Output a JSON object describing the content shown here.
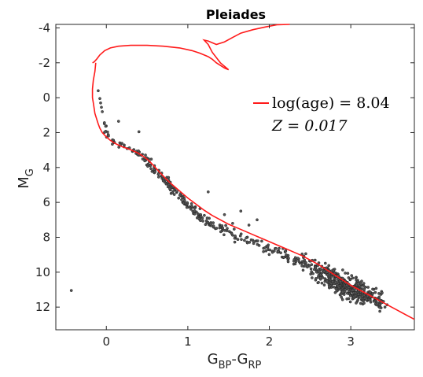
{
  "chart_data": {
    "type": "scatter",
    "title": "Pleiades",
    "xlabel": {
      "main": "G",
      "sub1": "BP",
      "dash": "-",
      "main2": "G",
      "sub2": "RP"
    },
    "ylabel": {
      "main": "M",
      "sub": "G"
    },
    "xlim": [
      -0.62,
      3.78
    ],
    "ylim": [
      13.3,
      -4.2
    ],
    "y_reversed": true,
    "xticks": [
      0,
      1,
      2,
      3
    ],
    "xtick_labels": [
      "0",
      "1",
      "2",
      "3"
    ],
    "yticks": [
      -4,
      -2,
      0,
      2,
      4,
      6,
      8,
      10,
      12
    ],
    "ytick_labels": [
      "-4",
      "-2",
      "0",
      "2",
      "4",
      "6",
      "8",
      "10",
      "12"
    ],
    "grid": false,
    "legend": {
      "position": "upper-right",
      "entries": [
        {
          "line1": "log(age) = 8.04",
          "line2": "Z = 0.017"
        }
      ]
    },
    "colors": {
      "isochrone": "#ff1a1a",
      "stars": "#555555",
      "stars_edge": "#222222"
    },
    "isochrone": {
      "name": "log(age) = 8.04, Z = 0.017",
      "x": [
        -0.13,
        -0.14,
        -0.16,
        -0.17,
        -0.17,
        -0.16,
        -0.15,
        -0.14,
        -0.12,
        -0.1,
        -0.08,
        -0.05,
        0.0,
        0.05,
        0.1,
        0.15,
        0.2,
        0.28,
        0.38,
        0.45,
        0.52,
        0.58,
        0.65,
        0.72,
        0.8,
        0.9,
        1.0,
        1.1,
        1.2,
        1.3,
        1.4,
        1.5,
        1.6,
        1.7,
        1.8,
        1.9,
        2.0,
        2.1,
        2.2,
        2.3,
        2.4,
        2.5,
        2.6,
        2.7,
        2.8,
        2.9,
        3.0,
        3.1,
        3.2,
        3.3,
        3.4,
        3.5,
        3.6,
        3.7,
        3.78
      ],
      "y": [
        -2.0,
        -1.5,
        -1.0,
        -0.5,
        0.0,
        0.3,
        0.6,
        0.9,
        1.2,
        1.5,
        1.75,
        2.0,
        2.25,
        2.45,
        2.6,
        2.72,
        2.82,
        2.95,
        3.15,
        3.35,
        3.6,
        3.9,
        4.25,
        4.6,
        4.95,
        5.35,
        5.75,
        6.1,
        6.45,
        6.75,
        7.0,
        7.25,
        7.45,
        7.65,
        7.85,
        8.05,
        8.25,
        8.45,
        8.65,
        8.85,
        9.05,
        9.3,
        9.55,
        9.85,
        10.15,
        10.45,
        10.75,
        11.0,
        11.25,
        11.5,
        11.75,
        12.0,
        12.25,
        12.5,
        12.7
      ]
    },
    "isochrone_top": {
      "x": [
        -0.17,
        -0.15,
        -0.12,
        -0.08,
        -0.02,
        0.05,
        0.15,
        0.3,
        0.5,
        0.7,
        0.9,
        1.05,
        1.15,
        1.25,
        1.3,
        1.35,
        1.4,
        1.45,
        1.5,
        1.4,
        1.3,
        1.25,
        1.2,
        1.25,
        1.35,
        1.45,
        1.55,
        1.65,
        1.8,
        1.95,
        2.1,
        2.25
      ],
      "y": [
        -2.0,
        -2.05,
        -2.2,
        -2.45,
        -2.7,
        -2.85,
        -2.95,
        -3.0,
        -3.0,
        -2.95,
        -2.85,
        -2.7,
        -2.55,
        -2.35,
        -2.2,
        -2.0,
        -1.85,
        -1.7,
        -1.6,
        -2.0,
        -2.6,
        -3.05,
        -3.3,
        -3.25,
        -3.05,
        -3.2,
        -3.45,
        -3.7,
        -3.9,
        -4.05,
        -4.18,
        -4.25
      ]
    },
    "outliers": {
      "x": [
        -0.43,
        -0.1,
        -0.08,
        -0.07,
        -0.06,
        -0.05,
        0.15,
        0.4,
        1.25,
        1.45,
        1.55,
        1.65,
        1.75,
        1.85,
        2.2,
        2.35
      ],
      "y": [
        11.05,
        -0.4,
        0.05,
        0.3,
        0.55,
        0.8,
        1.35,
        1.95,
        5.4,
        6.7,
        7.2,
        6.5,
        7.3,
        7.0,
        8.8,
        9.2
      ]
    },
    "series": [
      {
        "kind": "sampled-cluster",
        "x": [
          -0.04,
          -0.02,
          0.0,
          0.03,
          0.07,
          0.11,
          0.16,
          0.22,
          0.28,
          0.33,
          0.37,
          0.42,
          0.46,
          0.5,
          0.54,
          0.57,
          0.61,
          0.65,
          0.69,
          0.73,
          0.77,
          0.81,
          0.85,
          0.9,
          0.94,
          0.98,
          1.02,
          1.06,
          1.11,
          1.15,
          1.2,
          1.25,
          1.3,
          1.36,
          1.42,
          1.48,
          1.55,
          1.62,
          1.7,
          1.78,
          1.86,
          1.94,
          2.02,
          2.1,
          2.18,
          2.26,
          2.34,
          2.42,
          2.5,
          2.56,
          2.62,
          2.68,
          2.73,
          2.78,
          2.83,
          2.87,
          2.91,
          2.95,
          2.99,
          3.03,
          3.07,
          3.11,
          3.15,
          3.19,
          3.23,
          3.27,
          3.31,
          3.35,
          3.4
        ],
        "y": [
          1.45,
          1.65,
          1.95,
          2.2,
          2.4,
          2.55,
          2.65,
          2.78,
          2.9,
          3.0,
          3.15,
          3.3,
          3.45,
          3.6,
          3.8,
          4.0,
          4.2,
          4.4,
          4.6,
          4.8,
          5.0,
          5.2,
          5.4,
          5.65,
          5.85,
          6.05,
          6.25,
          6.4,
          6.6,
          6.75,
          6.9,
          7.05,
          7.2,
          7.35,
          7.5,
          7.65,
          7.8,
          7.95,
          8.1,
          8.25,
          8.4,
          8.55,
          8.7,
          8.85,
          9.0,
          9.15,
          9.3,
          9.45,
          9.6,
          9.75,
          9.9,
          10.05,
          10.2,
          10.35,
          10.5,
          10.6,
          10.7,
          10.8,
          10.9,
          11.0,
          11.1,
          11.2,
          11.3,
          11.4,
          11.5,
          11.55,
          11.65,
          11.8,
          12.0
        ],
        "x_spread": [
          0.03,
          0.03,
          0.04,
          0.04,
          0.04,
          0.05,
          0.05,
          0.05,
          0.05,
          0.05,
          0.05,
          0.05,
          0.05,
          0.05,
          0.05,
          0.05,
          0.05,
          0.05,
          0.05,
          0.05,
          0.05,
          0.05,
          0.05,
          0.05,
          0.05,
          0.05,
          0.05,
          0.05,
          0.05,
          0.05,
          0.05,
          0.05,
          0.06,
          0.06,
          0.06,
          0.06,
          0.06,
          0.06,
          0.07,
          0.07,
          0.07,
          0.08,
          0.08,
          0.08,
          0.09,
          0.09,
          0.1,
          0.11,
          0.12,
          0.13,
          0.14,
          0.15,
          0.16,
          0.17,
          0.17,
          0.17,
          0.17,
          0.17,
          0.17,
          0.17,
          0.17,
          0.17,
          0.17,
          0.16,
          0.15,
          0.14,
          0.12,
          0.1,
          0.08
        ],
        "y_spread": [
          0.1,
          0.1,
          0.1,
          0.1,
          0.1,
          0.1,
          0.1,
          0.12,
          0.12,
          0.12,
          0.15,
          0.15,
          0.15,
          0.15,
          0.15,
          0.15,
          0.15,
          0.15,
          0.18,
          0.18,
          0.18,
          0.18,
          0.2,
          0.2,
          0.2,
          0.2,
          0.2,
          0.22,
          0.22,
          0.22,
          0.22,
          0.22,
          0.22,
          0.22,
          0.22,
          0.22,
          0.22,
          0.25,
          0.25,
          0.25,
          0.25,
          0.25,
          0.25,
          0.28,
          0.3,
          0.3,
          0.35,
          0.4,
          0.45,
          0.5,
          0.55,
          0.6,
          0.6,
          0.6,
          0.6,
          0.6,
          0.6,
          0.6,
          0.6,
          0.6,
          0.6,
          0.6,
          0.55,
          0.5,
          0.45,
          0.4,
          0.35,
          0.3,
          0.25
        ],
        "count": [
          2,
          2,
          3,
          3,
          3,
          3,
          3,
          3,
          3,
          4,
          4,
          4,
          5,
          5,
          6,
          6,
          6,
          6,
          6,
          7,
          7,
          7,
          7,
          7,
          7,
          7,
          7,
          7,
          7,
          7,
          7,
          7,
          7,
          6,
          6,
          6,
          6,
          6,
          6,
          6,
          6,
          6,
          7,
          8,
          8,
          9,
          10,
          12,
          14,
          16,
          18,
          20,
          22,
          24,
          26,
          28,
          30,
          32,
          32,
          32,
          30,
          28,
          26,
          22,
          18,
          14,
          10,
          7,
          4
        ]
      }
    ]
  }
}
